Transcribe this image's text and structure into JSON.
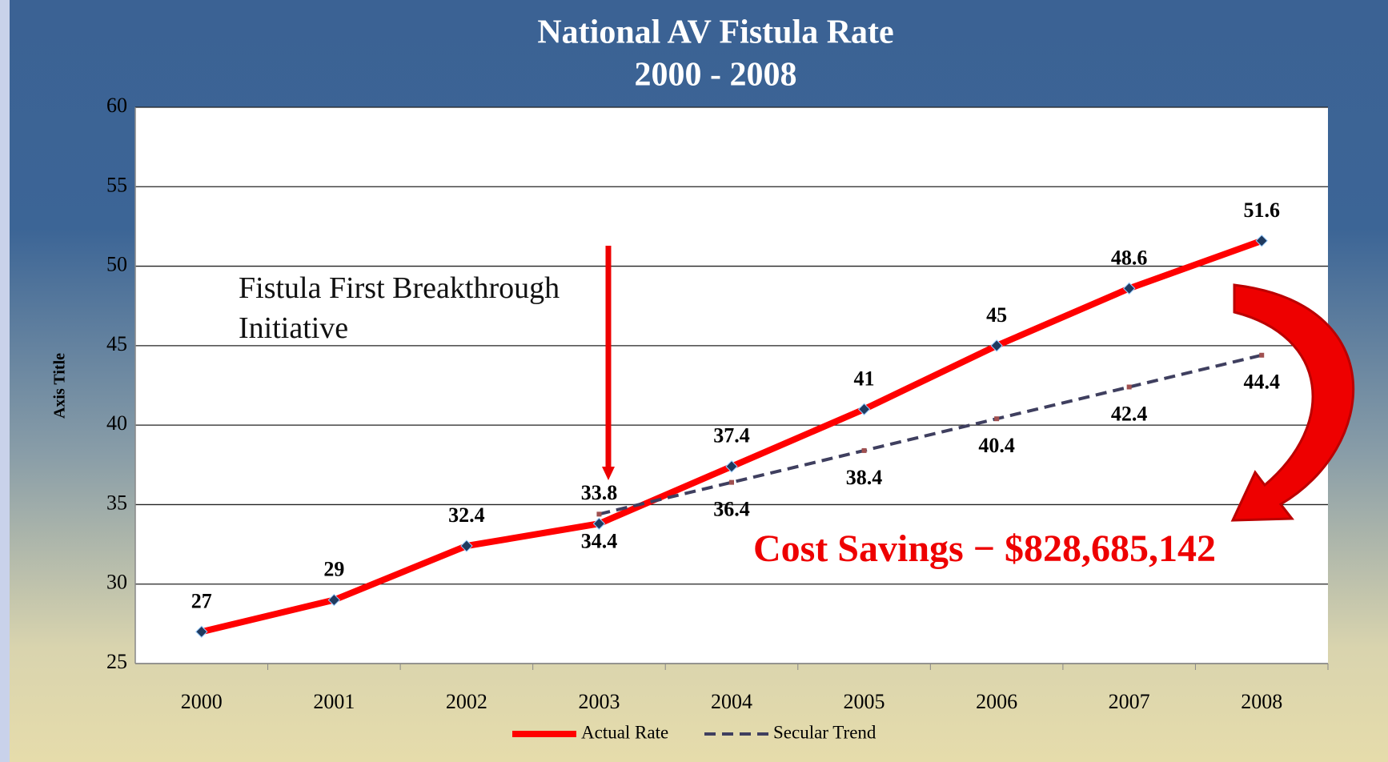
{
  "chart_data": {
    "type": "line",
    "title": [
      "National AV Fistula Rate",
      "2000 - 2008"
    ],
    "y_label": "Axis Title",
    "categories": [
      "2000",
      "2001",
      "2002",
      "2003",
      "2004",
      "2005",
      "2006",
      "2007",
      "2008"
    ],
    "series": [
      {
        "name": "Actual Rate",
        "color": "#ff0000",
        "values": [
          27,
          29,
          32.4,
          33.8,
          37.4,
          41,
          45,
          48.6,
          51.6
        ]
      },
      {
        "name": "Secular Trend",
        "color": "#3f3f5f",
        "values": [
          null,
          null,
          null,
          34.4,
          36.4,
          38.4,
          40.4,
          42.4,
          44.4
        ]
      }
    ],
    "ylim": [
      25,
      60
    ],
    "yticks": [
      25,
      30,
      35,
      40,
      45,
      50,
      55,
      60
    ],
    "grid": true,
    "legend": "bottom",
    "annotations": [
      "Fistula First Breakthrough Initiative",
      "Cost Savings − $828,685,142"
    ]
  }
}
